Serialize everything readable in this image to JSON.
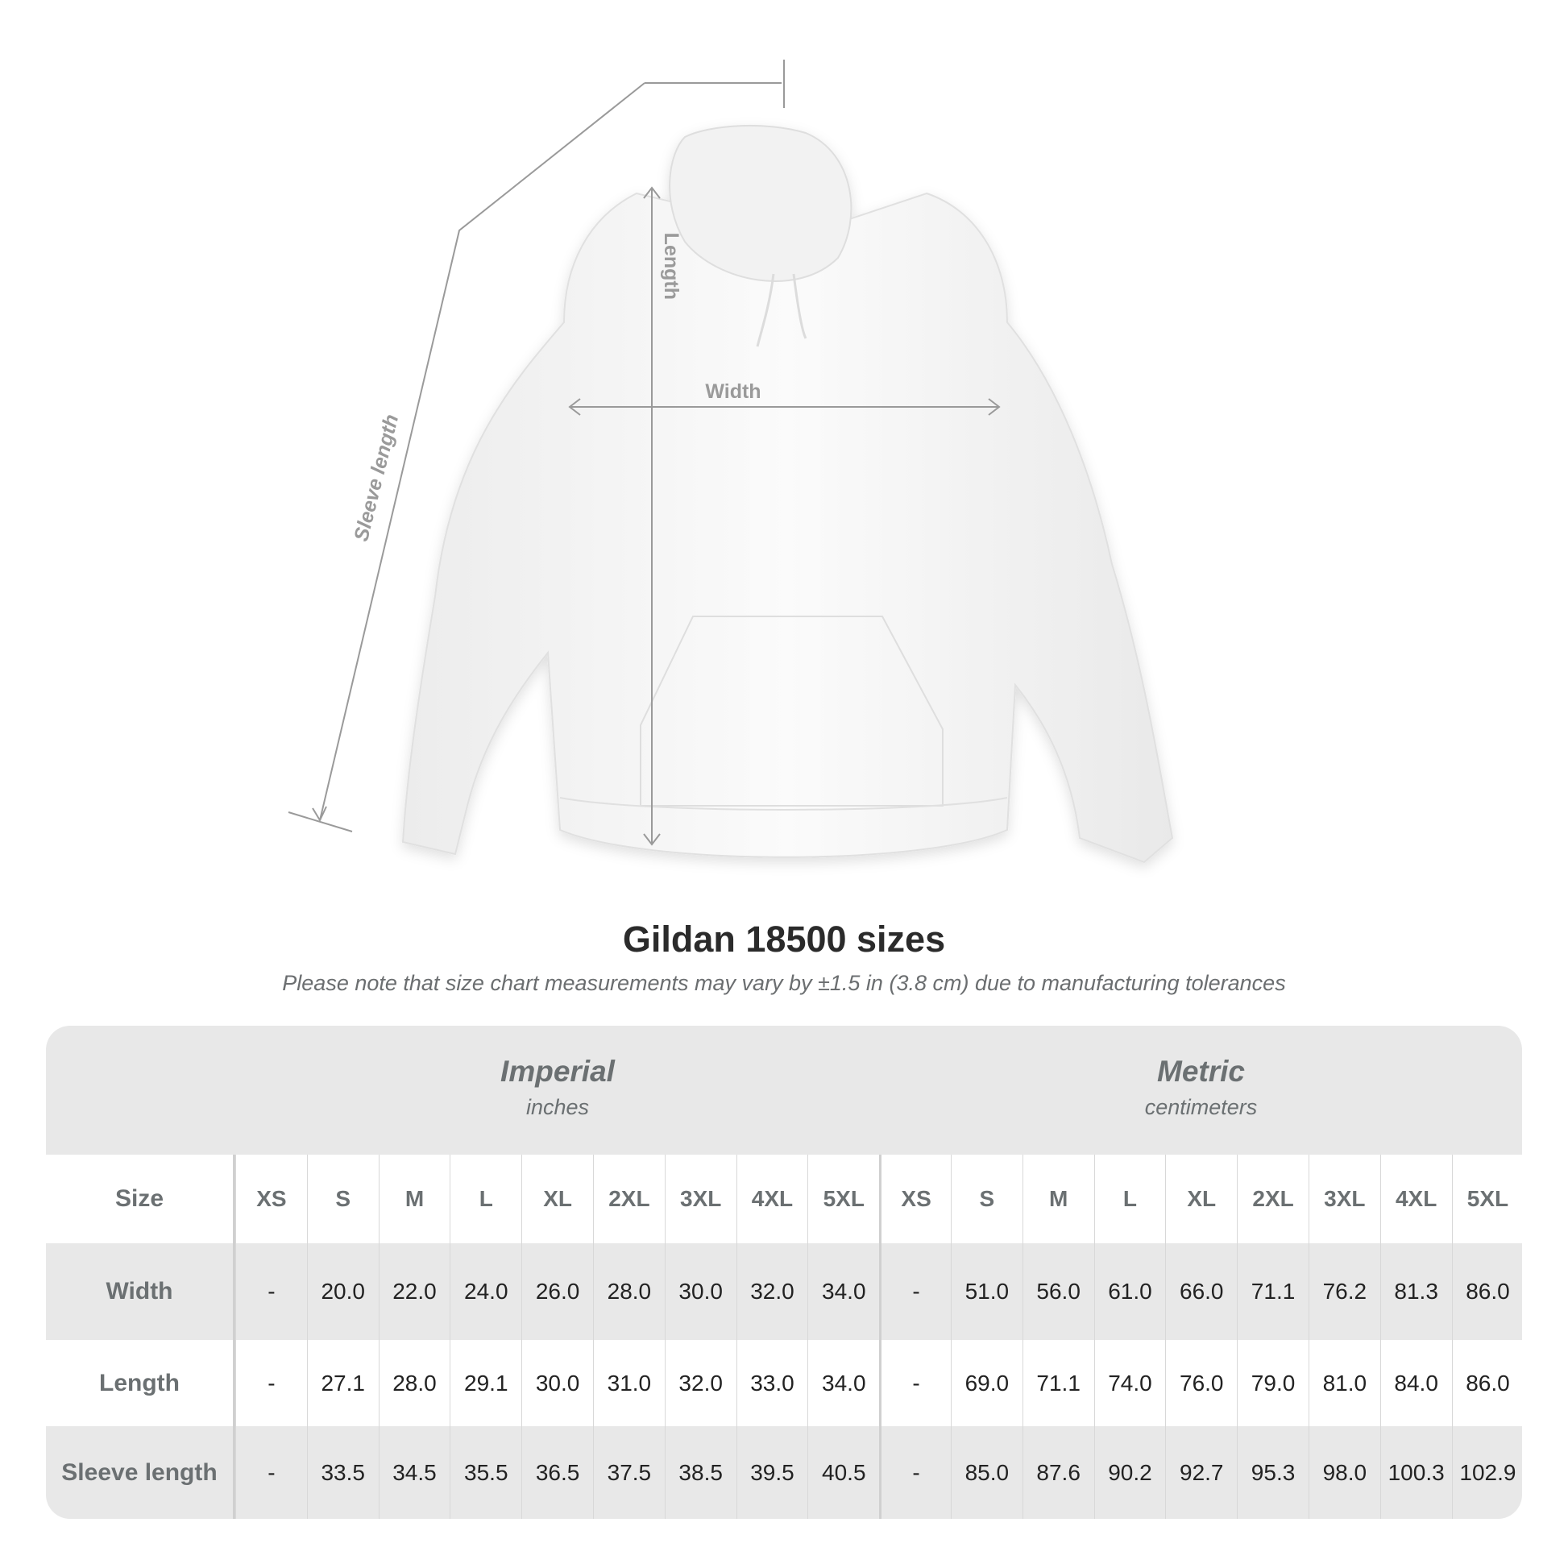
{
  "illustration": {
    "labels": {
      "length": "Length",
      "width": "Width",
      "sleeve_length": "Sleeve length"
    }
  },
  "title": "Gildan 18500 sizes",
  "note": "Please note that size chart measurements may vary by ±1.5 in (3.8 cm) due to manufacturing tolerances",
  "table": {
    "imperial": {
      "heading": "Imperial",
      "unit": "inches"
    },
    "metric": {
      "heading": "Metric",
      "unit": "centimeters"
    },
    "size_label": "Size",
    "sizes": [
      "XS",
      "S",
      "M",
      "L",
      "XL",
      "2XL",
      "3XL",
      "4XL",
      "5XL"
    ],
    "rows": [
      {
        "label": "Width",
        "imperial": [
          "-",
          "20.0",
          "22.0",
          "24.0",
          "26.0",
          "28.0",
          "30.0",
          "32.0",
          "34.0"
        ],
        "metric": [
          "-",
          "51.0",
          "56.0",
          "61.0",
          "66.0",
          "71.1",
          "76.2",
          "81.3",
          "86.0"
        ]
      },
      {
        "label": "Length",
        "imperial": [
          "-",
          "27.1",
          "28.0",
          "29.1",
          "30.0",
          "31.0",
          "32.0",
          "33.0",
          "34.0"
        ],
        "metric": [
          "-",
          "69.0",
          "71.1",
          "74.0",
          "76.0",
          "79.0",
          "81.0",
          "84.0",
          "86.0"
        ]
      },
      {
        "label": "Sleeve length",
        "imperial": [
          "-",
          "33.5",
          "34.5",
          "35.5",
          "36.5",
          "37.5",
          "38.5",
          "39.5",
          "40.5"
        ],
        "metric": [
          "-",
          "85.0",
          "87.6",
          "90.2",
          "92.7",
          "95.3",
          "98.0",
          "100.3",
          "102.9"
        ]
      }
    ]
  },
  "colors": {
    "header_bg": "#e8e8e8",
    "label_text": "#6b7072",
    "annotation": "#9a9a9a"
  }
}
